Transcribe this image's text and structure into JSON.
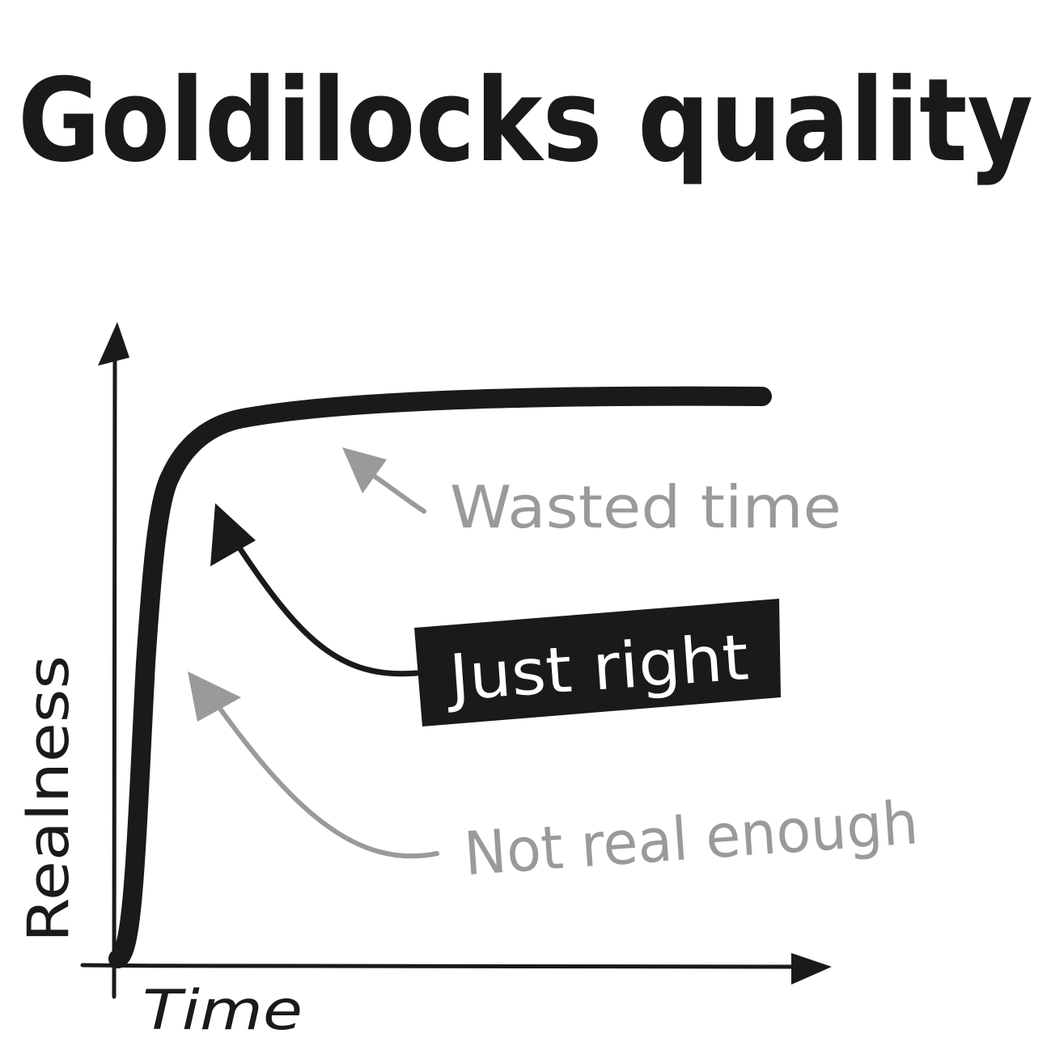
{
  "title": "Goldilocks quality",
  "axes": {
    "y_label": "Realness",
    "x_label": "Time"
  },
  "annotations": {
    "wasted_time": "Wasted time",
    "just_right": "Just right",
    "not_real_enough": "Not real enough"
  },
  "colors": {
    "ink": "#1a1a1a",
    "gray": "#9a9a9a",
    "box_text": "#ffffff",
    "background": "#ffffff"
  }
}
